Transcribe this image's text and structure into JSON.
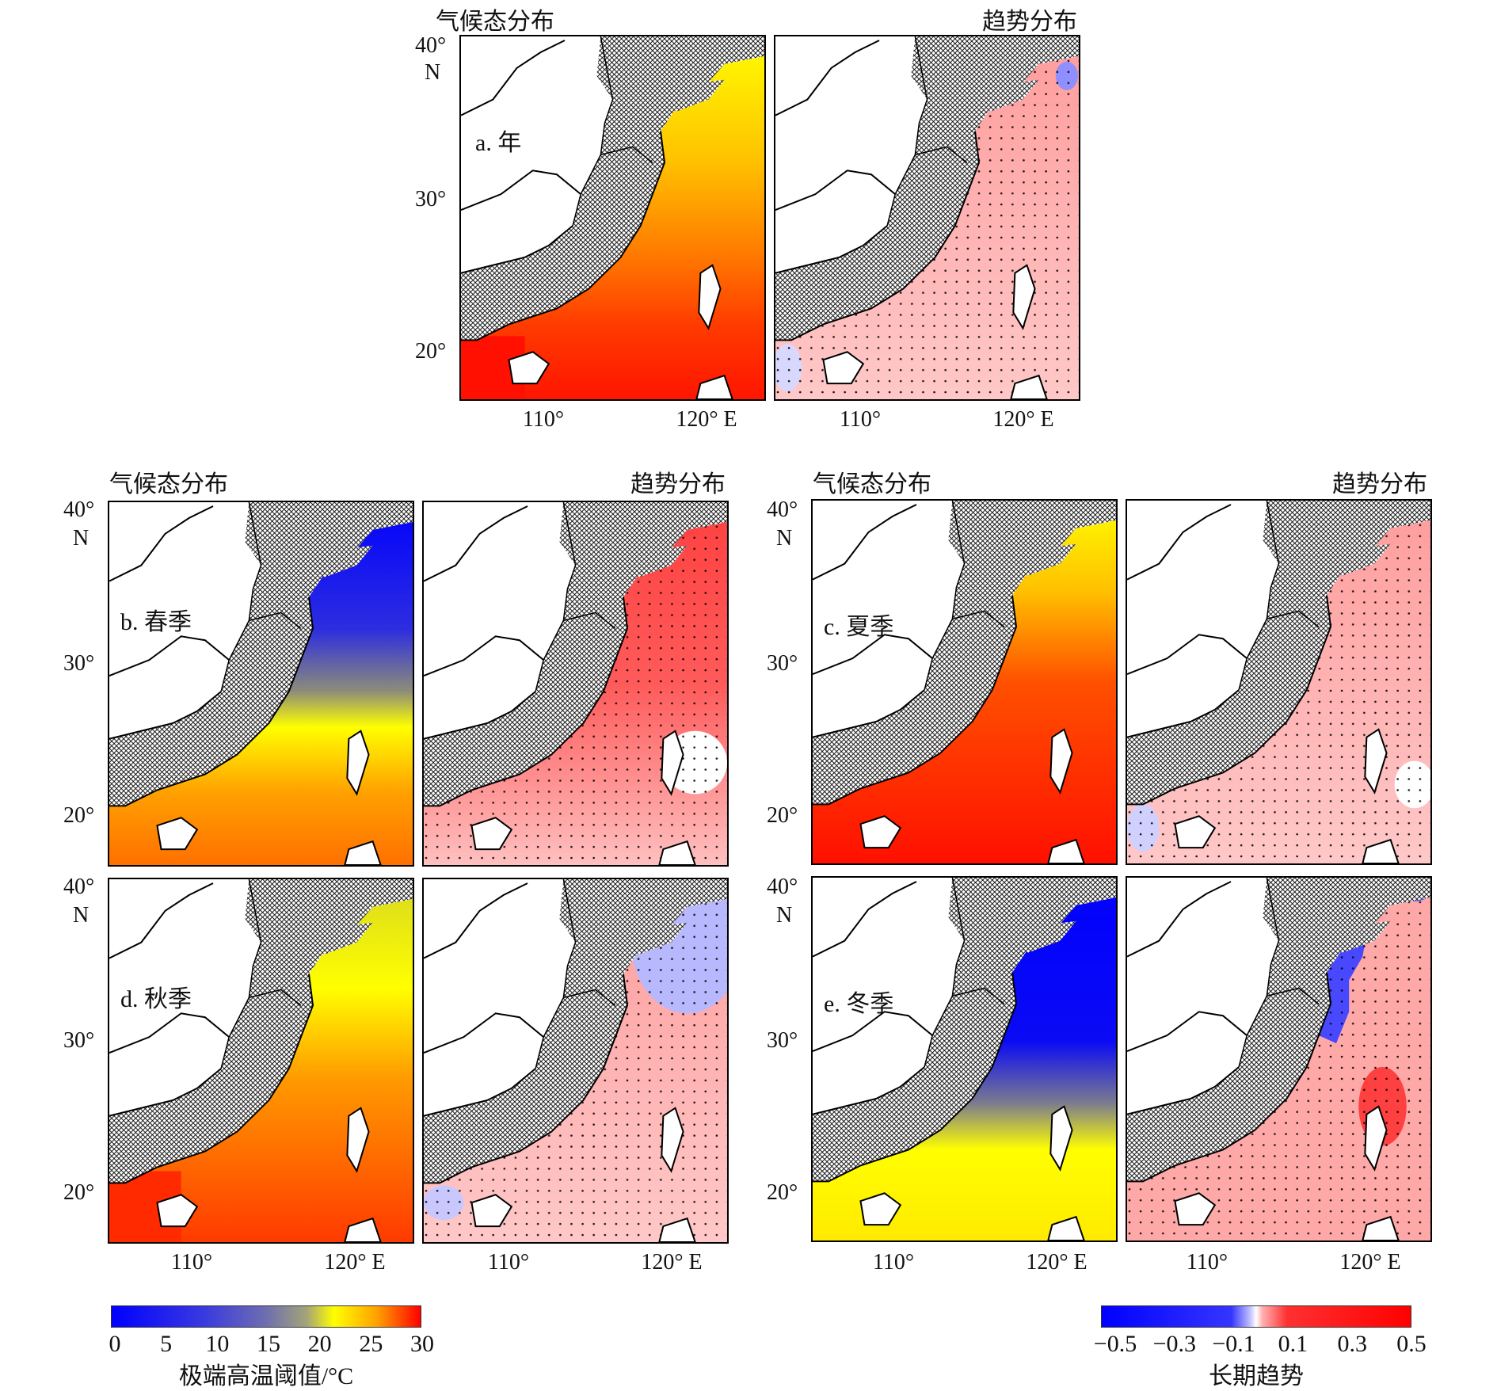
{
  "figure": {
    "panels": [
      {
        "id": "a",
        "label": "a. 年",
        "left_title": "气候态分布",
        "right_title": "趋势分布"
      },
      {
        "id": "b",
        "label": "b. 春季",
        "left_title": "气候态分布",
        "right_title": "趋势分布"
      },
      {
        "id": "c",
        "label": "c. 夏季",
        "left_title": "气候态分布",
        "right_title": "趋势分布"
      },
      {
        "id": "d",
        "label": "d. 秋季"
      },
      {
        "id": "e",
        "label": "e. 冬季"
      }
    ],
    "axes": {
      "lat_ticks": [
        "40°",
        "30°",
        "20°"
      ],
      "lat_unit": "N",
      "lon_ticks": [
        "110°",
        "120° E"
      ]
    },
    "colorbars": {
      "climate": {
        "title": "极端高温阈值/°C",
        "ticks": [
          "0",
          "5",
          "10",
          "15",
          "20",
          "25",
          "30"
        ],
        "min": 0,
        "max": 30,
        "colors": [
          "#0000ff",
          "#4a4ad0",
          "#8a8a80",
          "#ffff00",
          "#ffa500",
          "#ff0000"
        ]
      },
      "trend": {
        "title": "长期趋势",
        "ticks": [
          "−0.5",
          "−0.3",
          "−0.1",
          "0.1",
          "0.3",
          "0.5"
        ],
        "min": -0.5,
        "max": 0.5,
        "colors": [
          "#0000ff",
          "#9a9aff",
          "#ffffff",
          "#ff9a9a",
          "#ff0000"
        ]
      }
    },
    "colors": {
      "land_hatch": "#000000",
      "climate_annual_gradient": [
        "#ffff00",
        "#ffa500",
        "#ff4500",
        "#ff2000"
      ],
      "trend_positive": "#ffb3b3",
      "trend_negative": "#8f8fff"
    }
  }
}
